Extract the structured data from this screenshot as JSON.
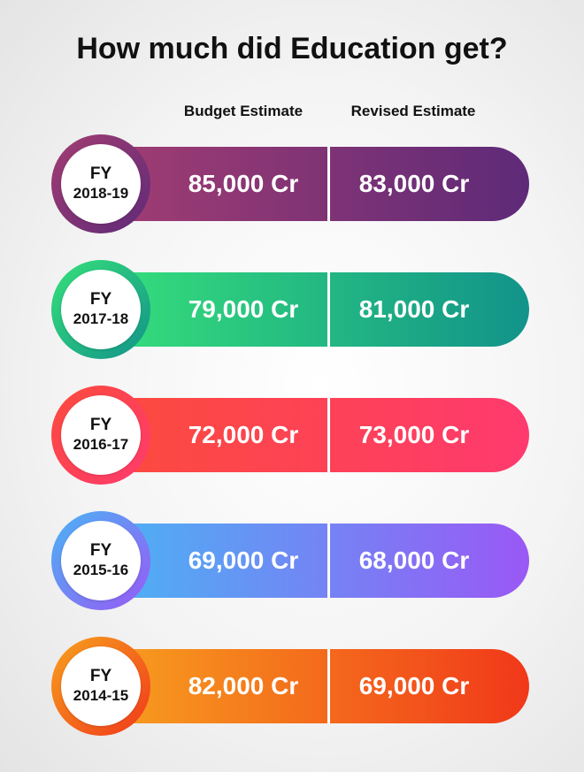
{
  "title": "How much did Education get?",
  "chart_data": {
    "type": "table",
    "title": "How much did Education get?",
    "columns": [
      "Budget Estimate",
      "Revised Estimate"
    ],
    "unit": "Cr",
    "rows": [
      {
        "fy_label": "FY",
        "year": "2018-19",
        "budget": 85000,
        "revised": 83000,
        "budget_text": "85,000 Cr",
        "revised_text": "83,000 Cr",
        "colors": [
          "#a33d72",
          "#5e2a78"
        ]
      },
      {
        "fy_label": "FY",
        "year": "2017-18",
        "budget": 79000,
        "revised": 81000,
        "budget_text": "79,000 Cr",
        "revised_text": "81,000 Cr",
        "colors": [
          "#36e07a",
          "#12938a"
        ]
      },
      {
        "fy_label": "FY",
        "year": "2016-17",
        "budget": 72000,
        "revised": 73000,
        "budget_text": "72,000 Cr",
        "revised_text": "73,000 Cr",
        "colors": [
          "#fb4b3c",
          "#ff3a6e"
        ]
      },
      {
        "fy_label": "FY",
        "year": "2015-16",
        "budget": 69000,
        "revised": 68000,
        "budget_text": "69,000 Cr",
        "revised_text": "68,000 Cr",
        "colors": [
          "#4ab4f4",
          "#9a58f5"
        ]
      },
      {
        "fy_label": "FY",
        "year": "2014-15",
        "budget": 82000,
        "revised": 69000,
        "budget_text": "82,000 Cr",
        "revised_text": "69,000 Cr",
        "colors": [
          "#f7a11e",
          "#f1381a"
        ]
      }
    ]
  }
}
